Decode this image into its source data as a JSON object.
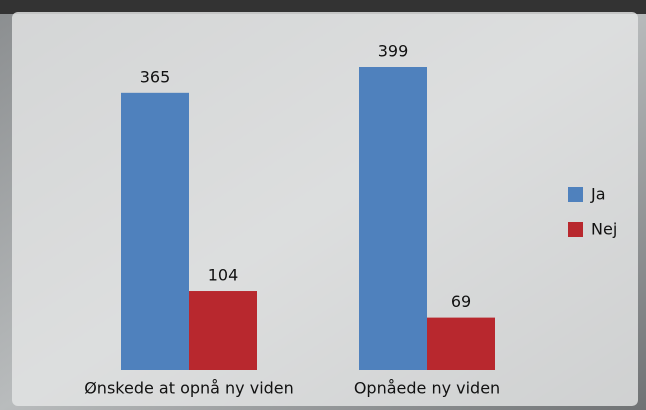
{
  "chart_data": {
    "type": "bar",
    "categories": [
      "Ønskede at opnå ny viden",
      "Opnåede ny viden"
    ],
    "series": [
      {
        "name": "Ja",
        "color": "#4f81bd",
        "values": [
          365,
          399
        ]
      },
      {
        "name": "Nej",
        "color": "#b8282e",
        "values": [
          104,
          69
        ]
      }
    ],
    "legend": "right"
  }
}
